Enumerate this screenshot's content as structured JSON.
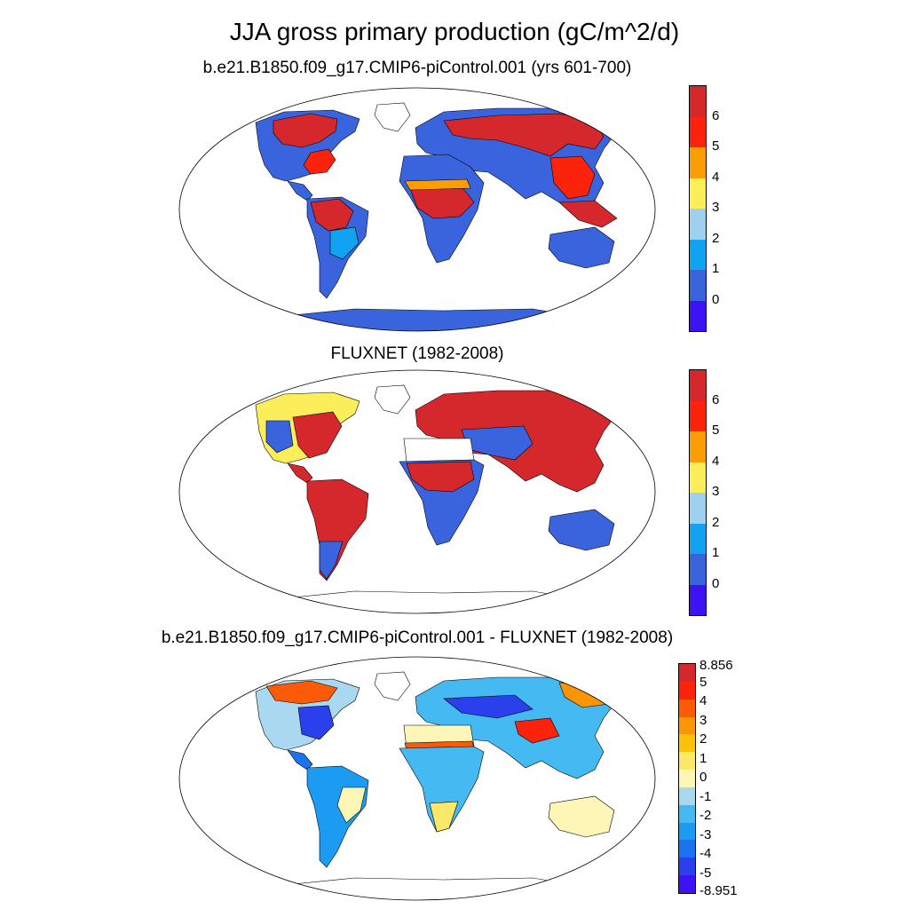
{
  "title": "JJA gross primary production (gC/m^2/d)",
  "panels": [
    {
      "title": "b.e21.B1850.f09_g17.CMIP6-piControl.001 (yrs 601-700)",
      "colorbar": {
        "colors": [
          "#3d12f5",
          "#3a64dd",
          "#12a2f2",
          "#9fd1ee",
          "#fbee5a",
          "#fb9d05",
          "#fb230c",
          "#d5282c"
        ],
        "labels": [
          "0",
          "1",
          "2",
          "3",
          "4",
          "5",
          "6"
        ]
      }
    },
    {
      "title": "FLUXNET (1982-2008)",
      "colorbar": {
        "colors": [
          "#3d12f5",
          "#3a64dd",
          "#12a2f2",
          "#9fd1ee",
          "#fbee5a",
          "#fb9d05",
          "#fb230c",
          "#d5282c"
        ],
        "labels": [
          "0",
          "1",
          "2",
          "3",
          "4",
          "5",
          "6"
        ]
      }
    },
    {
      "title": "b.e21.B1850.f09_g17.CMIP6-piControl.001 - FLUXNET (1982-2008)",
      "colorbar": {
        "colors": [
          "#3d12f5",
          "#2a40ec",
          "#1c73ef",
          "#1b9cf2",
          "#45b9f2",
          "#a9d8f0",
          "#fdf6b6",
          "#fbe866",
          "#fcc20a",
          "#fb9505",
          "#fb5a07",
          "#fb230c",
          "#d5282c"
        ],
        "labels": [
          "-8.951",
          "-5",
          "-4",
          "-3",
          "-2",
          "-1",
          "0",
          "1",
          "2",
          "3",
          "4",
          "5",
          "8.856"
        ]
      }
    }
  ]
}
